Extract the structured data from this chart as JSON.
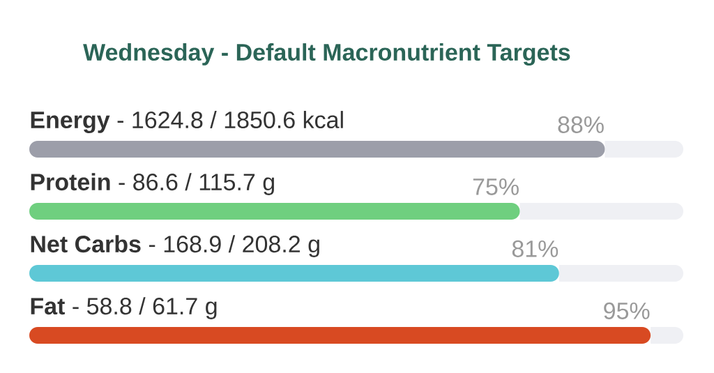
{
  "chart_data": {
    "type": "bar",
    "orientation": "horizontal",
    "stacked": true,
    "title": "Wednesday - Default Macronutrient Targets",
    "categories": [
      "**Energy** - 1624.8 / 1850.6 kcal",
      "**Protein** - 86.6 / 115.7 g",
      "**Net Carbs** - 168.9 / 208.2 g",
      "**Fat** - 58.8 / 61.7 g"
    ],
    "series": [
      {
        "colors": [
          "#9c9ea9",
          "#6fcf7f",
          "#5ec8d6",
          "#d84a22"
        ],
        "values": [
          88,
          75,
          81,
          95
        ],
        "value_labels": [
          "88%",
          "75%",
          "81%",
          "95%"
        ]
      },
      {
        "color": "#eff0f4",
        "values": [
          12,
          25,
          19,
          5
        ]
      }
    ],
    "xlim": [
      0,
      100
    ]
  }
}
